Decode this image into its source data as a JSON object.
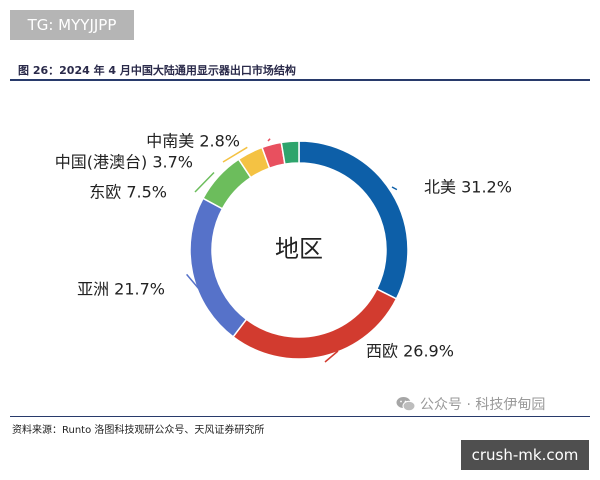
{
  "watermark_top": "TG: MYYJJPP",
  "watermark_bottom": "crush-mk.com",
  "figure_title": "图 26：2024 年 4 月中国大陆通用显示器出口市场结构",
  "source_note": "资料来源：Runto 洛图科技观研公众号、天风证券研究所",
  "wechat_label": "公众号 · 科技伊甸园",
  "chart_data": {
    "type": "pie",
    "variant": "donut",
    "center_label": "地区",
    "categories": [
      "北美",
      "西欧",
      "亚洲",
      "东欧",
      "中国(港澳台)",
      "中南美",
      ""
    ],
    "values": [
      31.2,
      26.9,
      21.7,
      7.5,
      3.7,
      2.8,
      2.5
    ],
    "labels": [
      "北美 31.2%",
      "西欧 26.9%",
      "亚洲 21.7%",
      "东欧 7.5%",
      "中国(港澳台) 3.7%",
      "中南美 2.8%",
      ""
    ],
    "colors": [
      "#0d5fa8",
      "#d23b2f",
      "#5672c9",
      "#6cbd5c",
      "#f4c243",
      "#e8505f",
      "#2ea46c"
    ],
    "legend": "none"
  }
}
